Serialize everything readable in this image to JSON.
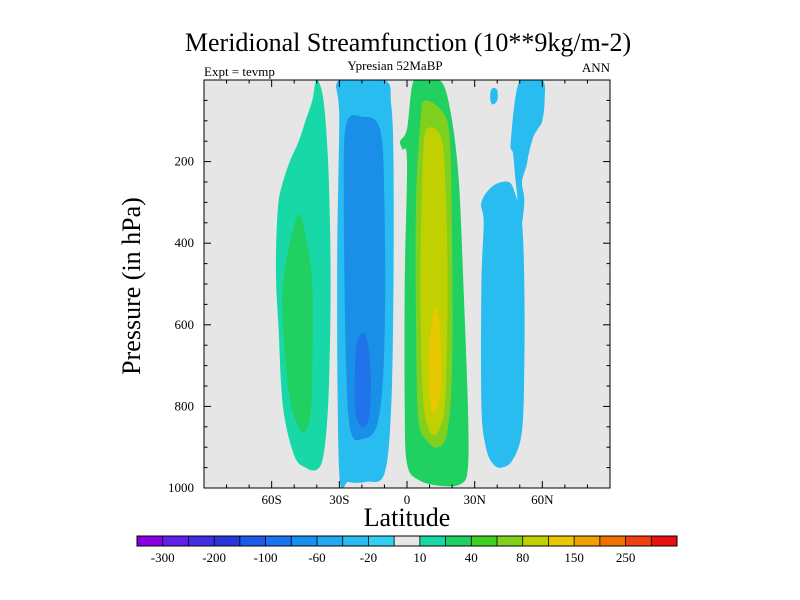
{
  "chart_data": {
    "type": "contour",
    "title": "Meridional Streamfunction (10**9kg/m-2)",
    "subtitle_left": "Expt = tevmp",
    "subtitle_center": "Ypresian  52MaBP",
    "subtitle_right": "ANN",
    "xlabel": "Latitude",
    "ylabel": "Pressure (in hPa)",
    "xlim": [
      -90,
      90
    ],
    "ylim": [
      1000,
      0
    ],
    "x_ticks": [
      {
        "value": -60,
        "label": "60S"
      },
      {
        "value": -30,
        "label": "30S"
      },
      {
        "value": 0,
        "label": "0"
      },
      {
        "value": 30,
        "label": "30N"
      },
      {
        "value": 60,
        "label": "60N"
      }
    ],
    "y_ticks": [
      {
        "value": 200,
        "label": "200"
      },
      {
        "value": 400,
        "label": "400"
      },
      {
        "value": 600,
        "label": "600"
      },
      {
        "value": 800,
        "label": "800"
      },
      {
        "value": 1000,
        "label": "1000"
      }
    ],
    "levels": [
      -300,
      -250,
      -200,
      -150,
      -100,
      -80,
      -60,
      -40,
      -20,
      -10,
      10,
      20,
      40,
      60,
      80,
      100,
      150,
      200,
      250,
      300
    ],
    "colorbar": {
      "colors": [
        "#8a00e0",
        "#6020e8",
        "#4030e0",
        "#2838d8",
        "#1e5ae8",
        "#1a74f0",
        "#1890f0",
        "#20a8f0",
        "#28bcf0",
        "#30d0f0",
        "#e6e6e6",
        "#18d8a8",
        "#20d060",
        "#40d020",
        "#80d020",
        "#c0d000",
        "#e8c800",
        "#f0a000",
        "#f07000",
        "#f04010",
        "#e81010"
      ],
      "tick_labels": [
        "-300",
        "-200",
        "-100",
        "-60",
        "-20",
        "10",
        "40",
        "80",
        "150",
        "250"
      ]
    },
    "regions": [
      {
        "name": "sh-outer-cell",
        "sign": "positive",
        "x": [
          -40,
          -42,
          -45,
          -48,
          -52,
          -55,
          -57,
          -58,
          -58,
          -57,
          -55,
          -50,
          -45,
          -40,
          -37,
          -35,
          -34,
          -34,
          -35,
          -37
        ],
        "y": [
          0,
          50,
          100,
          150,
          200,
          250,
          300,
          400,
          500,
          600,
          800,
          920,
          950,
          955,
          920,
          800,
          600,
          400,
          200,
          50
        ]
      },
      {
        "name": "sh-outer-cell-core",
        "sign": "positive",
        "x": [
          -48,
          -52,
          -55,
          -55,
          -52,
          -47,
          -43,
          -42,
          -42,
          -45
        ],
        "y": [
          330,
          400,
          500,
          600,
          780,
          860,
          830,
          700,
          500,
          380
        ]
      },
      {
        "name": "sh-mid-cell",
        "sign": "negative",
        "x": [
          -30,
          -10,
          -7,
          -6,
          -6,
          -7,
          -10,
          -18,
          -26,
          -30,
          -31,
          -30
        ],
        "y": [
          0,
          0,
          60,
          200,
          500,
          800,
          965,
          985,
          985,
          965,
          500,
          100
        ]
      },
      {
        "name": "sh-mid-cell-inner",
        "sign": "negative",
        "x": [
          -27,
          -20,
          -12,
          -10,
          -10,
          -13,
          -20,
          -25,
          -27,
          -28
        ],
        "y": [
          110,
          90,
          120,
          300,
          650,
          840,
          880,
          860,
          700,
          300
        ]
      },
      {
        "name": "sh-mid-cell-core",
        "sign": "negative",
        "x": [
          -22,
          -19,
          -17,
          -16,
          -17,
          -20,
          -23,
          -23
        ],
        "y": [
          640,
          620,
          660,
          750,
          830,
          850,
          810,
          700
        ]
      },
      {
        "name": "tropical-cell",
        "sign": "positive",
        "x": [
          3,
          10,
          16,
          20,
          23,
          25,
          27,
          27,
          24,
          15,
          5,
          0,
          -1,
          -1,
          0,
          -2,
          -3,
          0
        ],
        "y": [
          0,
          0,
          10,
          100,
          250,
          500,
          800,
          950,
          990,
          995,
          980,
          940,
          800,
          500,
          200,
          170,
          150,
          120
        ]
      },
      {
        "name": "tropical-cell-inner",
        "sign": "positive",
        "x": [
          8,
          16,
          19,
          20,
          20,
          18,
          14,
          9,
          5,
          4,
          4,
          6
        ],
        "y": [
          50,
          80,
          150,
          400,
          700,
          860,
          900,
          885,
          830,
          600,
          300,
          100
        ]
      },
      {
        "name": "tropical-cell-strong",
        "sign": "positive",
        "x": [
          9,
          15,
          17,
          18,
          17,
          14,
          10,
          7,
          6,
          7
        ],
        "y": [
          120,
          140,
          250,
          500,
          780,
          860,
          860,
          770,
          500,
          200
        ]
      },
      {
        "name": "tropical-cell-core",
        "sign": "positive",
        "x": [
          12,
          14,
          15,
          15,
          13,
          11,
          10,
          10
        ],
        "y": [
          560,
          580,
          650,
          750,
          810,
          810,
          750,
          650
        ]
      },
      {
        "name": "nh-polar-cell",
        "sign": "negative",
        "x": [
          50,
          60,
          61,
          60,
          58,
          56,
          54,
          53,
          51,
          52,
          50,
          48,
          49,
          48,
          47,
          46
        ],
        "y": [
          0,
          0,
          50,
          100,
          120,
          140,
          180,
          210,
          250,
          300,
          380,
          360,
          300,
          240,
          180,
          150
        ]
      },
      {
        "name": "nh-mid-cell",
        "sign": "negative",
        "x": [
          33,
          38,
          45,
          48,
          51,
          52,
          52,
          51,
          47,
          42,
          38,
          35,
          33,
          33,
          34
        ],
        "y": [
          300,
          260,
          250,
          280,
          350,
          500,
          700,
          860,
          930,
          950,
          940,
          900,
          800,
          500,
          350
        ]
      },
      {
        "name": "nh-upper-neg",
        "sign": "negative",
        "x": [
          37,
          38,
          40,
          40,
          38,
          37
        ],
        "y": [
          30,
          20,
          25,
          50,
          60,
          50
        ]
      }
    ]
  }
}
